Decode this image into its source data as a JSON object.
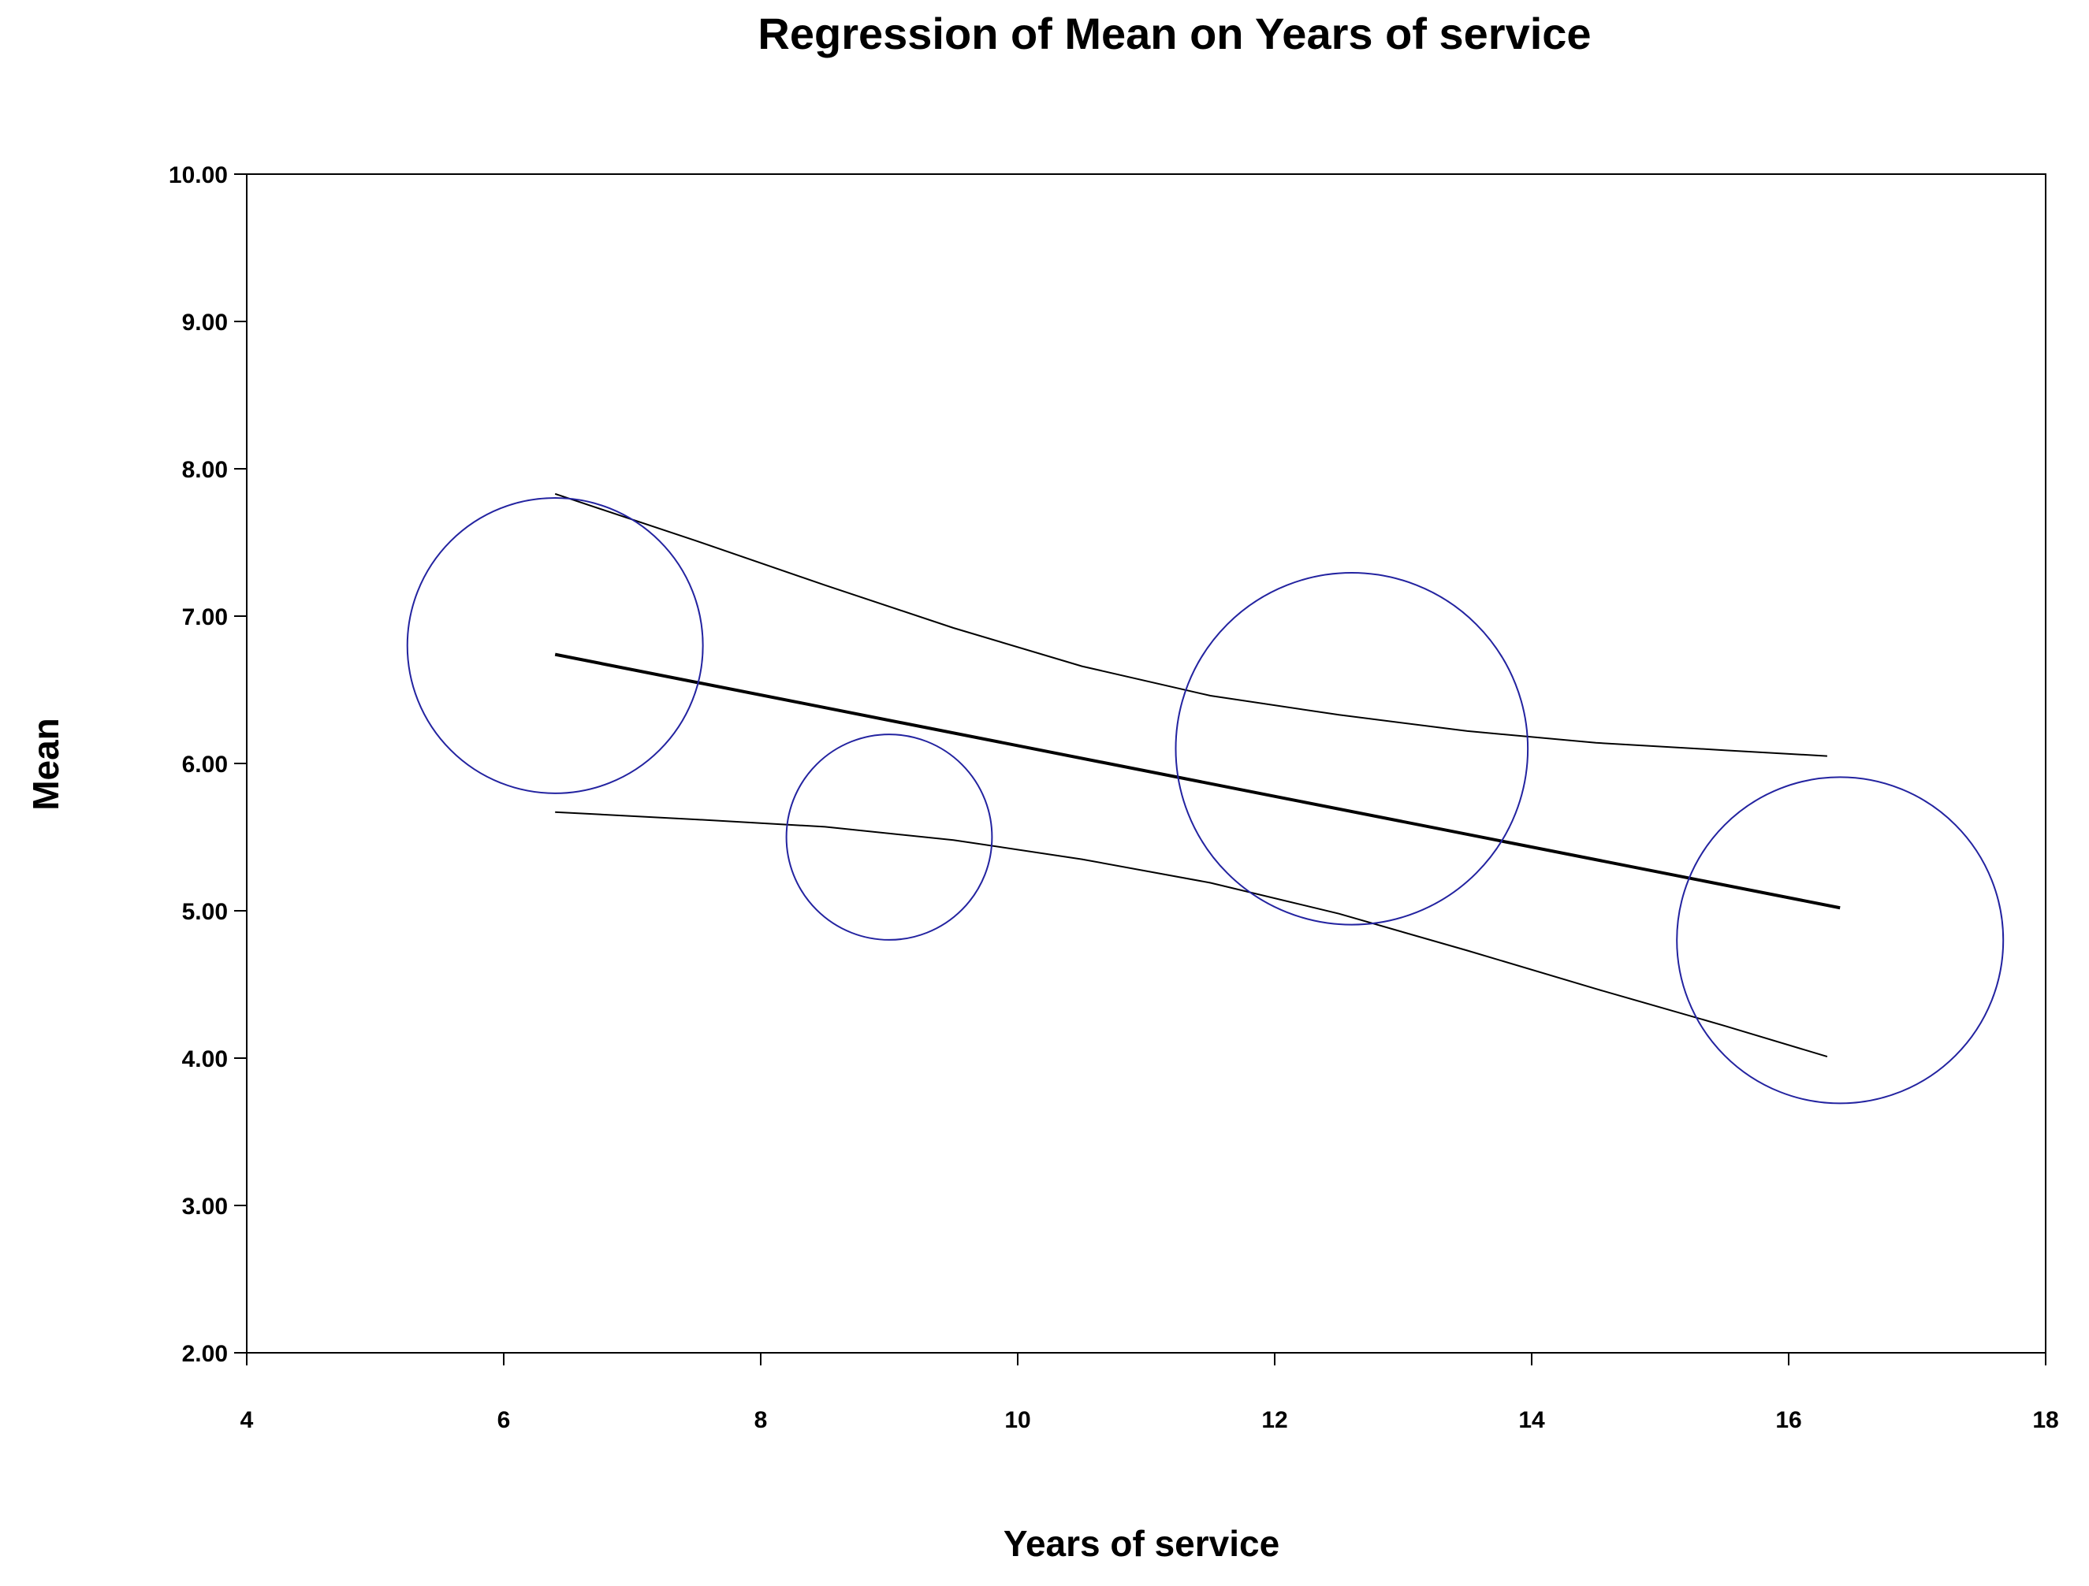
{
  "chart_data": {
    "type": "scatter",
    "title": "Regression of Mean on Years of service",
    "xlabel": "Years of service",
    "ylabel": "Mean",
    "xlim": [
      4,
      18
    ],
    "ylim": [
      2,
      10
    ],
    "x_ticks": [
      "4",
      "6",
      "8",
      "10",
      "12",
      "14",
      "16",
      "18"
    ],
    "y_ticks": [
      "2.00",
      "3.00",
      "4.00",
      "5.00",
      "6.00",
      "7.00",
      "8.00",
      "9.00",
      "10.00"
    ],
    "grid": false,
    "legend": "none",
    "colors": {
      "points": "#2323a0",
      "regression": "#000000",
      "bands": "#000000",
      "axes": "#000000",
      "background": "#ffffff"
    },
    "points": [
      {
        "x": 6.4,
        "y": 6.8,
        "size_years": 1.15
      },
      {
        "x": 9.0,
        "y": 5.5,
        "size_years": 0.8
      },
      {
        "x": 12.6,
        "y": 6.1,
        "size_years": 1.37
      },
      {
        "x": 16.4,
        "y": 4.8,
        "size_years": 1.27
      }
    ],
    "regression_line": {
      "x": [
        6.4,
        16.4
      ],
      "y": [
        6.74,
        5.02
      ]
    },
    "upper_band": {
      "x": [
        6.4,
        7.5,
        8.5,
        9.5,
        10.5,
        11.5,
        12.5,
        13.5,
        14.5,
        15.5,
        16.3
      ],
      "y": [
        7.83,
        7.51,
        7.21,
        6.92,
        6.66,
        6.46,
        6.33,
        6.22,
        6.14,
        6.09,
        6.05
      ]
    },
    "lower_band": {
      "x": [
        6.4,
        7.5,
        8.5,
        9.5,
        10.5,
        11.5,
        12.5,
        13.5,
        14.5,
        15.5,
        16.3
      ],
      "y": [
        5.67,
        5.62,
        5.57,
        5.48,
        5.35,
        5.19,
        4.98,
        4.73,
        4.47,
        4.22,
        4.01
      ]
    }
  }
}
